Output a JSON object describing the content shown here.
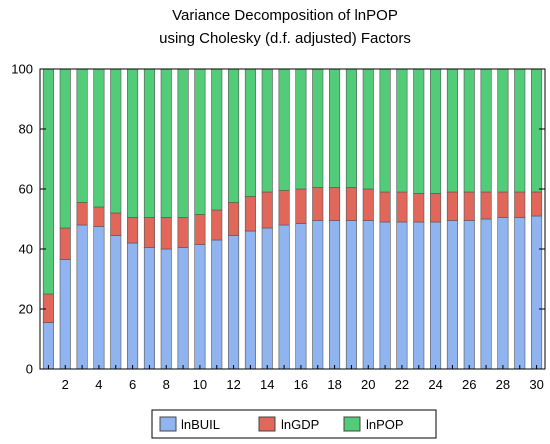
{
  "chart_data": {
    "type": "bar",
    "stacked": true,
    "title": [
      "Variance Decomposition of lnPOP",
      "using Cholesky (d.f. adjusted) Factors"
    ],
    "xlabel": "",
    "ylabel": "",
    "ylim": [
      0,
      100
    ],
    "yticks": [
      0,
      20,
      40,
      60,
      80,
      100
    ],
    "x": [
      1,
      2,
      3,
      4,
      5,
      6,
      7,
      8,
      9,
      10,
      11,
      12,
      13,
      14,
      15,
      16,
      17,
      18,
      19,
      20,
      21,
      22,
      23,
      24,
      25,
      26,
      27,
      28,
      29,
      30
    ],
    "xtick_labels": [
      "2",
      "4",
      "6",
      "8",
      "10",
      "12",
      "14",
      "16",
      "18",
      "20",
      "22",
      "24",
      "26",
      "28",
      "30"
    ],
    "legend_position": "bottom",
    "grid": false,
    "series": [
      {
        "name": "lnBUIL",
        "color": "#8fb4f0",
        "values": [
          15.5,
          36.5,
          48,
          47.5,
          44.5,
          42,
          40.5,
          40,
          40.5,
          41.5,
          43,
          44.5,
          46,
          47,
          48,
          48.5,
          49.5,
          49.5,
          49.5,
          49.5,
          49,
          49,
          49,
          49,
          49.5,
          49.5,
          50,
          50.5,
          50.5,
          51
        ]
      },
      {
        "name": "lnGDP",
        "color": "#e0675a",
        "values": [
          9.5,
          10.5,
          7.5,
          6.5,
          7.5,
          8.5,
          10,
          10.5,
          10,
          10,
          10,
          11,
          11.5,
          12,
          11.5,
          11.5,
          11,
          11,
          11,
          10.5,
          10,
          10,
          9.5,
          9.5,
          9.5,
          9.5,
          9,
          8.5,
          8.5,
          8
        ]
      },
      {
        "name": "lnPOP",
        "color": "#52cc79",
        "values": [
          75,
          53,
          44.5,
          46,
          48,
          49.5,
          49.5,
          49.5,
          49.5,
          48.5,
          47,
          44.5,
          42.5,
          41,
          40.5,
          40,
          39.5,
          39.5,
          39.5,
          40,
          41,
          41,
          41.5,
          41.5,
          41,
          41,
          41,
          41,
          41,
          41
        ]
      }
    ]
  }
}
